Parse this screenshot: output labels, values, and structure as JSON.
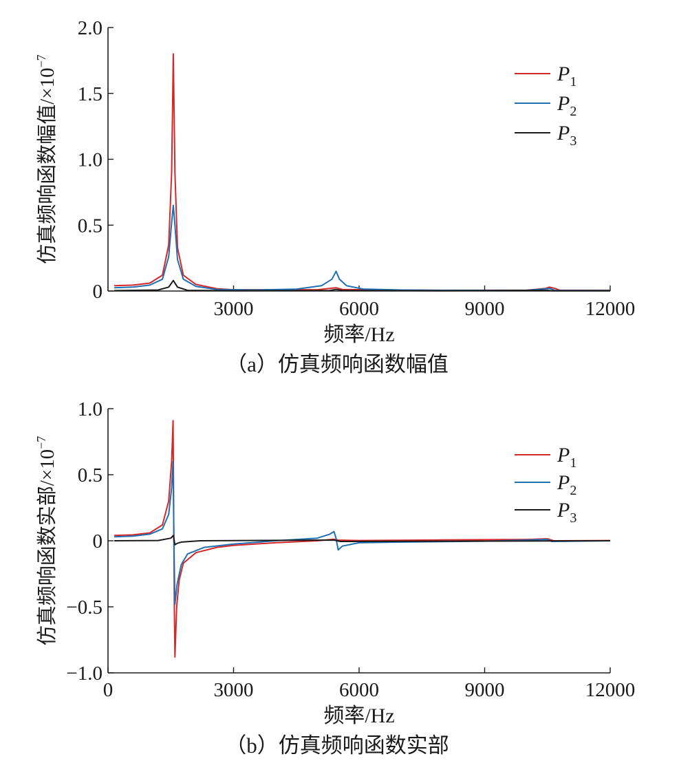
{
  "chart_data": [
    {
      "type": "line",
      "caption": "（a）仿真频响函数幅值",
      "xlabel": "频率/Hz",
      "ylabel": "仿真频响函数幅值/×10",
      "ylabel_exponent": "−7",
      "xlim": [
        0,
        12000
      ],
      "ylim": [
        0,
        2.0
      ],
      "x_ticks": [
        3000,
        6000,
        9000,
        12000
      ],
      "x_tick_labels": [
        "3000",
        "6000",
        "9000",
        "12000"
      ],
      "y_ticks": [
        0,
        0.5,
        1.0,
        1.5,
        2.0
      ],
      "y_tick_labels": [
        "0",
        "0.5",
        "1.0",
        "1.5",
        "2.0"
      ],
      "grid": false,
      "legend_position": "top-right",
      "series": [
        {
          "name": "P",
          "subscript": "1",
          "color": "#d62728",
          "points": [
            [
              150,
              0.04
            ],
            [
              600,
              0.045
            ],
            [
              1000,
              0.06
            ],
            [
              1300,
              0.12
            ],
            [
              1450,
              0.35
            ],
            [
              1520,
              0.9
            ],
            [
              1560,
              1.8
            ],
            [
              1600,
              0.9
            ],
            [
              1660,
              0.33
            ],
            [
              1800,
              0.12
            ],
            [
              2100,
              0.05
            ],
            [
              2600,
              0.018
            ],
            [
              3000,
              0.01
            ],
            [
              4000,
              0.01
            ],
            [
              5000,
              0.01
            ],
            [
              5450,
              0.025
            ],
            [
              5600,
              0.012
            ],
            [
              6500,
              0.008
            ],
            [
              8000,
              0.006
            ],
            [
              10000,
              0.006
            ],
            [
              10450,
              0.02
            ],
            [
              10550,
              0.03
            ],
            [
              10680,
              0.02
            ],
            [
              10800,
              0.006
            ],
            [
              12000,
              0.006
            ]
          ]
        },
        {
          "name": "P",
          "subscript": "2",
          "color": "#1f6fb2",
          "points": [
            [
              150,
              0.025
            ],
            [
              600,
              0.03
            ],
            [
              1000,
              0.045
            ],
            [
              1300,
              0.09
            ],
            [
              1450,
              0.26
            ],
            [
              1520,
              0.52
            ],
            [
              1560,
              0.65
            ],
            [
              1600,
              0.5
            ],
            [
              1660,
              0.24
            ],
            [
              1800,
              0.09
            ],
            [
              2100,
              0.035
            ],
            [
              2600,
              0.012
            ],
            [
              3500,
              0.008
            ],
            [
              4500,
              0.014
            ],
            [
              5100,
              0.04
            ],
            [
              5350,
              0.09
            ],
            [
              5450,
              0.15
            ],
            [
              5530,
              0.09
            ],
            [
              5700,
              0.04
            ],
            [
              6100,
              0.015
            ],
            [
              7000,
              0.008
            ],
            [
              8000,
              0.005
            ],
            [
              10000,
              0.005
            ],
            [
              10550,
              0.02
            ],
            [
              10680,
              0.005
            ],
            [
              12000,
              0.004
            ]
          ]
        },
        {
          "name": "P",
          "subscript": "3",
          "color": "#1a1a1a",
          "points": [
            [
              150,
              0.003
            ],
            [
              1200,
              0.008
            ],
            [
              1450,
              0.03
            ],
            [
              1560,
              0.08
            ],
            [
              1660,
              0.03
            ],
            [
              1900,
              0.005
            ],
            [
              3000,
              0.002
            ],
            [
              5300,
              0.004
            ],
            [
              5450,
              0.012
            ],
            [
              5600,
              0.004
            ],
            [
              8000,
              0.002
            ],
            [
              10500,
              0.006
            ],
            [
              10600,
              0.002
            ],
            [
              12000,
              0.002
            ]
          ]
        }
      ]
    },
    {
      "type": "line",
      "caption": "（b）仿真频响函数实部",
      "xlabel": "频率/Hz",
      "ylabel": "仿真频响函数实部/×10",
      "ylabel_exponent": "−7",
      "xlim": [
        0,
        12000
      ],
      "ylim": [
        -1.0,
        1.0
      ],
      "x_ticks": [
        0,
        3000,
        6000,
        9000,
        12000
      ],
      "x_tick_labels": [
        "0",
        "3000",
        "6000",
        "9000",
        "12000"
      ],
      "y_ticks": [
        -1.0,
        -0.5,
        0,
        0.5,
        1.0
      ],
      "y_tick_labels": [
        "−1.0",
        "−0.5",
        "0",
        "0.5",
        "1.0"
      ],
      "grid": false,
      "legend_position": "top-right",
      "series": [
        {
          "name": "P",
          "subscript": "1",
          "color": "#d62728",
          "points": [
            [
              150,
              0.04
            ],
            [
              600,
              0.045
            ],
            [
              1000,
              0.06
            ],
            [
              1300,
              0.12
            ],
            [
              1450,
              0.3
            ],
            [
              1520,
              0.6
            ],
            [
              1555,
              0.91
            ],
            [
              1570,
              0.2
            ],
            [
              1585,
              -0.5
            ],
            [
              1600,
              -0.88
            ],
            [
              1640,
              -0.5
            ],
            [
              1700,
              -0.3
            ],
            [
              1800,
              -0.17
            ],
            [
              2100,
              -0.09
            ],
            [
              2600,
              -0.05
            ],
            [
              3000,
              -0.035
            ],
            [
              4000,
              -0.015
            ],
            [
              5000,
              0.0
            ],
            [
              5400,
              0.012
            ],
            [
              5500,
              0.005
            ],
            [
              6000,
              0.002
            ],
            [
              8000,
              0.006
            ],
            [
              10000,
              0.01
            ],
            [
              10500,
              0.015
            ],
            [
              10650,
              0.0
            ],
            [
              12000,
              0.002
            ]
          ]
        },
        {
          "name": "P",
          "subscript": "2",
          "color": "#1f6fb2",
          "points": [
            [
              150,
              0.03
            ],
            [
              600,
              0.035
            ],
            [
              1000,
              0.05
            ],
            [
              1300,
              0.09
            ],
            [
              1450,
              0.2
            ],
            [
              1520,
              0.4
            ],
            [
              1555,
              0.6
            ],
            [
              1575,
              0.0
            ],
            [
              1600,
              -0.48
            ],
            [
              1650,
              -0.33
            ],
            [
              1750,
              -0.18
            ],
            [
              1900,
              -0.1
            ],
            [
              2300,
              -0.05
            ],
            [
              3000,
              -0.025
            ],
            [
              4000,
              0.0
            ],
            [
              5000,
              0.02
            ],
            [
              5300,
              0.05
            ],
            [
              5400,
              0.07
            ],
            [
              5450,
              0.02
            ],
            [
              5500,
              -0.07
            ],
            [
              5600,
              -0.04
            ],
            [
              6000,
              -0.015
            ],
            [
              7000,
              -0.01
            ],
            [
              9000,
              -0.003
            ],
            [
              10500,
              0.01
            ],
            [
              10600,
              -0.005
            ],
            [
              12000,
              0.0
            ]
          ]
        },
        {
          "name": "P",
          "subscript": "3",
          "color": "#1a1a1a",
          "points": [
            [
              150,
              0.0
            ],
            [
              1200,
              0.002
            ],
            [
              1500,
              0.02
            ],
            [
              1560,
              0.04
            ],
            [
              1600,
              -0.03
            ],
            [
              1650,
              -0.02
            ],
            [
              1750,
              -0.01
            ],
            [
              2200,
              0.0
            ],
            [
              5400,
              0.005
            ],
            [
              5550,
              -0.005
            ],
            [
              12000,
              0.0
            ]
          ]
        }
      ]
    }
  ]
}
